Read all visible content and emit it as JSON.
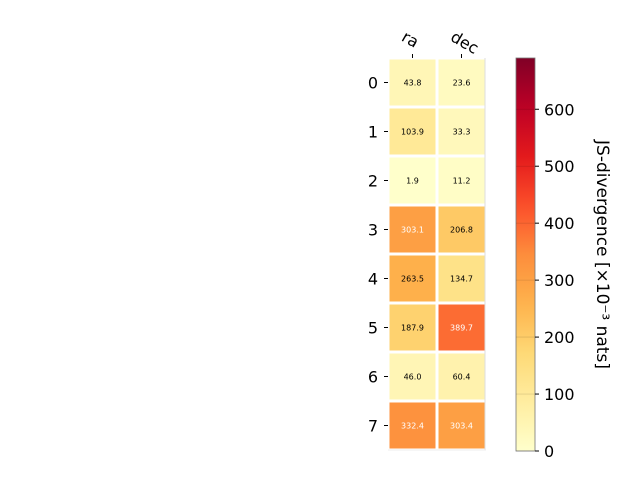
{
  "chart_data": {
    "type": "heatmap",
    "x_categories": [
      "ra",
      "dec"
    ],
    "y_categories": [
      "0",
      "1",
      "2",
      "3",
      "4",
      "5",
      "6",
      "7"
    ],
    "values": [
      [
        43.8,
        23.6
      ],
      [
        103.9,
        33.3
      ],
      [
        1.9,
        11.2
      ],
      [
        303.1,
        206.8
      ],
      [
        263.5,
        134.7
      ],
      [
        187.9,
        389.7
      ],
      [
        46.0,
        60.4
      ],
      [
        332.4,
        303.4
      ]
    ],
    "value_labels": [
      [
        "43.8",
        "23.6"
      ],
      [
        "103.9",
        "33.3"
      ],
      [
        "1.9",
        "11.2"
      ],
      [
        "303.1",
        "206.8"
      ],
      [
        "263.5",
        "134.7"
      ],
      [
        "187.9",
        "389.7"
      ],
      [
        "46.0",
        "60.4"
      ],
      [
        "332.4",
        "303.4"
      ]
    ],
    "colorbar": {
      "label": "JS-divergence [×10⁻³ nats]",
      "range": [
        0,
        690
      ],
      "ticks": [
        "0",
        "100",
        "200",
        "300",
        "400",
        "500",
        "600"
      ],
      "colormap": "YlOrRd"
    },
    "title": "",
    "xlabel": "",
    "ylabel": "",
    "grid": false
  }
}
